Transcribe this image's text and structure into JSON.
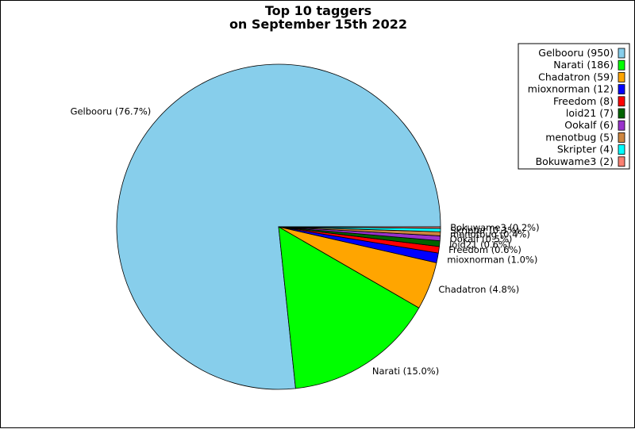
{
  "chart_data": {
    "type": "pie",
    "title_line1": "Top 10 taggers",
    "title_line2": "on September 15th 2022",
    "legend_position": "top-right",
    "slices": [
      {
        "name": "Gelbooru",
        "value": 950,
        "label": "Gelbooru (76.7%)",
        "legend": "Gelbooru (950)",
        "color": "#87ceeb"
      },
      {
        "name": "Narati",
        "value": 186,
        "label": "Narati (15.0%)",
        "legend": "Narati (186)",
        "color": "#00ff00"
      },
      {
        "name": "Chadatron",
        "value": 59,
        "label": "Chadatron (4.8%)",
        "legend": "Chadatron (59)",
        "color": "#ffa500"
      },
      {
        "name": "mioxnorman",
        "value": 12,
        "label": "mioxnorman (1.0%)",
        "legend": "mioxnorman (12)",
        "color": "#0000ff"
      },
      {
        "name": "Freedom",
        "value": 8,
        "label": "Freedom (0.6%)",
        "legend": "Freedom (8)",
        "color": "#ff0000"
      },
      {
        "name": "loid21",
        "value": 7,
        "label": "loid21 (0.6%)",
        "legend": "loid21 (7)",
        "color": "#006400"
      },
      {
        "name": "Ookalf",
        "value": 6,
        "label": "Ookalf (0.5%)",
        "legend": "Ookalf (6)",
        "color": "#9932cc"
      },
      {
        "name": "menotbug",
        "value": 5,
        "label": "menotbug (0.4%)",
        "legend": "menotbug (5)",
        "color": "#cd853f"
      },
      {
        "name": "Skripter",
        "value": 4,
        "label": "Skripter (0.3%)",
        "legend": "Skripter (4)",
        "color": "#00ffff"
      },
      {
        "name": "Bokuwame3",
        "value": 2,
        "label": "Bokuwame3 (0.2%)",
        "legend": "Bokuwame3 (2)",
        "color": "#fa8072"
      }
    ]
  }
}
